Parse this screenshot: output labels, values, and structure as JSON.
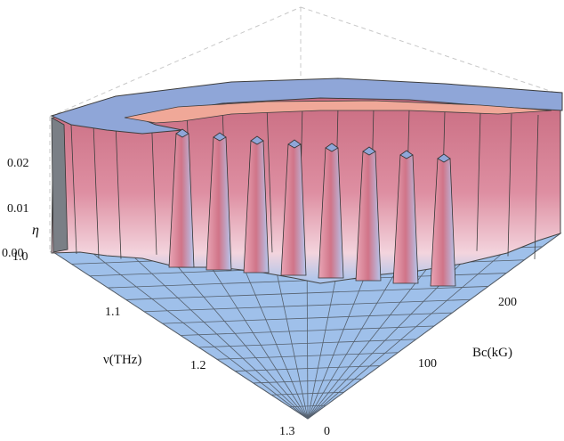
{
  "chart_data": {
    "type": "surface3d",
    "axes": {
      "nu": {
        "label": "ν(THz)",
        "ticks": [
          "1.0",
          "1.1",
          "1.2",
          "1.3"
        ],
        "range": [
          1.0,
          1.3
        ]
      },
      "Bc": {
        "label": "Bc(kG)",
        "ticks": [
          "0",
          "100",
          "200"
        ],
        "range": [
          0,
          260
        ]
      },
      "eta": {
        "label": "η",
        "ticks": [
          "0.00",
          "0.01",
          "0.02"
        ],
        "range": [
          0.0,
          0.025
        ]
      }
    },
    "plateau_eta": 0.025,
    "floor_eta": 0.0,
    "ridges": [
      {
        "Bc": 20,
        "nu_min": 1.0,
        "nu_max": 1.02
      },
      {
        "Bc": 45,
        "nu_min": 1.0,
        "nu_max": 1.03
      },
      {
        "Bc": 70,
        "nu_min": 1.0,
        "nu_max": 1.03
      },
      {
        "Bc": 95,
        "nu_min": 1.0,
        "nu_max": 1.04
      },
      {
        "Bc": 120,
        "nu_min": 1.0,
        "nu_max": 1.05
      },
      {
        "Bc": 150,
        "nu_min": 1.0,
        "nu_max": 1.06
      },
      {
        "Bc": 180,
        "nu_min": 1.0,
        "nu_max": 1.07
      },
      {
        "Bc": 210,
        "nu_min": 1.0,
        "nu_max": 1.09
      }
    ],
    "colors": {
      "floor": "#9fc0ea",
      "wall": "#d97e93",
      "top": "#8fa6d8",
      "rim": "#f0a898"
    },
    "grid": true
  }
}
